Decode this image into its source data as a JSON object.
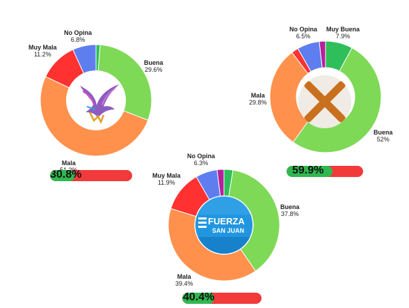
{
  "colors": {
    "buena": "#7ed957",
    "mala": "#ff914d",
    "muy_mala": "#ff3131",
    "no_opina": "#5e7ef0",
    "muy_buena": "#2fbf5a",
    "extra": "#b5219a",
    "bar_fill": "#2fb84f",
    "bar_bg": "#f23a3a"
  },
  "chart_data": [
    {
      "type": "pie",
      "slices": [
        {
          "name": "Muy Buena",
          "value": 1.2,
          "color": "#2fbf5a"
        },
        {
          "name": "Buena",
          "value": 29.6,
          "color": "#7ed957"
        },
        {
          "name": "Mala",
          "value": 51.2,
          "color": "#ff914d"
        },
        {
          "name": "Muy Mala",
          "value": 11.2,
          "color": "#ff3131"
        },
        {
          "name": "No Opina",
          "value": 6.8,
          "color": "#5e7ef0"
        }
      ],
      "labels": {
        "no_opina": {
          "name": "No Opina",
          "pct": "6.8%"
        },
        "muy_mala": {
          "name": "Muy Mala",
          "pct": "11.2%"
        },
        "buena": {
          "name": "Buena",
          "pct": "29.6%"
        },
        "mala": {
          "name": "Mala",
          "pct": "51.2%"
        }
      },
      "approval_text": "30.8%",
      "approval": 30.8,
      "center_icon": "eagle-logo"
    },
    {
      "type": "pie",
      "slices": [
        {
          "name": "Muy Buena",
          "value": 7.9,
          "color": "#2fbf5a"
        },
        {
          "name": "Buena",
          "value": 52,
          "color": "#7ed957"
        },
        {
          "name": "Mala",
          "value": 29.8,
          "color": "#ff914d"
        },
        {
          "name": "Muy Mala",
          "value": 2.0,
          "color": "#ff3131"
        },
        {
          "name": "No Opina",
          "value": 6.5,
          "color": "#5e7ef0"
        },
        {
          "name": "extra",
          "value": 1.8,
          "color": "#b5219a"
        }
      ],
      "labels": {
        "no_opina": {
          "name": "No Opina",
          "pct": "6.5%"
        },
        "muy_buena": {
          "name": "Muy Buena",
          "pct": "7.9%"
        },
        "mala": {
          "name": "Mala",
          "pct": "29.8%"
        },
        "buena": {
          "name": "Buena",
          "pct": "52%"
        }
      },
      "approval_text": "59.9%",
      "approval": 59.9,
      "center_icon": "x-mark-logo"
    },
    {
      "type": "pie",
      "slices": [
        {
          "name": "Muy Buena",
          "value": 2.6,
          "color": "#2fbf5a"
        },
        {
          "name": "Buena",
          "value": 37.8,
          "color": "#7ed957"
        },
        {
          "name": "Mala",
          "value": 39.4,
          "color": "#ff914d"
        },
        {
          "name": "Muy Mala",
          "value": 11.9,
          "color": "#ff3131"
        },
        {
          "name": "No Opina",
          "value": 6.3,
          "color": "#5e7ef0"
        },
        {
          "name": "extra",
          "value": 2.0,
          "color": "#b5219a"
        }
      ],
      "labels": {
        "no_opina": {
          "name": "No Opina",
          "pct": "6.3%"
        },
        "muy_mala": {
          "name": "Muy Mala",
          "pct": "11.9%"
        },
        "buena": {
          "name": "Buena",
          "pct": "37.8%"
        },
        "mala": {
          "name": "Mala",
          "pct": "39.4%"
        }
      },
      "approval_text": "40.4%",
      "approval": 40.4,
      "center_icon": "fuerza-san-juan-logo",
      "center_logo_text": [
        "FUERZA",
        "SAN JUAN"
      ]
    }
  ]
}
